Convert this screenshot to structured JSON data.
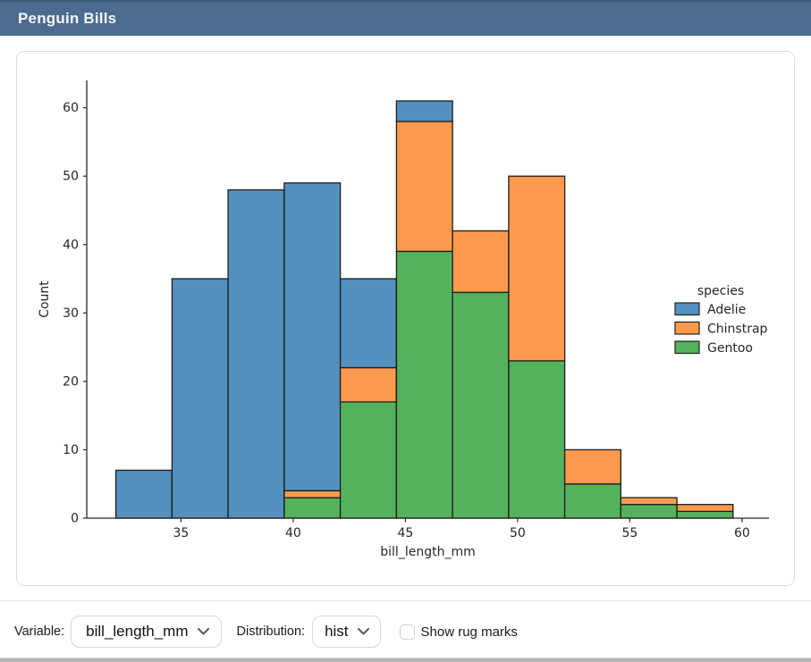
{
  "title_bar": {
    "title": "Penguin Bills"
  },
  "theme": {
    "titlebar_bg": "#4B6C8F",
    "titlebar_top_edge": "#3A5873",
    "titlebar_text": "#F5F7FA",
    "card_border": "#DCDCDC",
    "divider": "#E4E4E4",
    "window_edge": "#B5B5B5",
    "axis_color": "#262626",
    "bar_edge_color": "#1C1C1C"
  },
  "chart_data": {
    "type": "bar",
    "subtype": "stacked_histogram",
    "title": "",
    "xlabel": "bill_length_mm",
    "ylabel": "Count",
    "xlim": [
      30.8,
      61.2
    ],
    "ylim": [
      0,
      64
    ],
    "x_ticks": [
      35,
      40,
      45,
      50,
      55,
      60
    ],
    "y_ticks": [
      0,
      10,
      20,
      30,
      40,
      50,
      60
    ],
    "grid": false,
    "stacking": "bottom-to-top",
    "bin_edges": [
      32.1,
      34.6,
      37.1,
      39.6,
      42.1,
      44.6,
      47.1,
      49.6,
      52.1,
      54.6,
      57.1,
      59.6
    ],
    "series": [
      {
        "name": "Gentoo",
        "color": "#54B25C",
        "values": [
          0,
          0,
          0,
          3,
          17,
          39,
          33,
          23,
          5,
          2,
          1
        ]
      },
      {
        "name": "Chinstrap",
        "color": "#FD9A4D",
        "values": [
          0,
          0,
          0,
          1,
          5,
          19,
          9,
          27,
          5,
          1,
          1
        ]
      },
      {
        "name": "Adelie",
        "color": "#5390BE",
        "values": [
          7,
          35,
          48,
          45,
          13,
          3,
          0,
          0,
          0,
          0,
          0
        ]
      }
    ],
    "totals": [
      7,
      35,
      48,
      49,
      35,
      61,
      42,
      50,
      10,
      3,
      2
    ],
    "legend": {
      "title": "species",
      "position": "right",
      "entries": [
        {
          "label": "Adelie",
          "color": "#5390BE"
        },
        {
          "label": "Chinstrap",
          "color": "#FD9A4D"
        },
        {
          "label": "Gentoo",
          "color": "#54B25C"
        }
      ]
    }
  },
  "controls": {
    "variable_label": "Variable:",
    "variable_value": "bill_length_mm",
    "distribution_label": "Distribution:",
    "distribution_value": "hist",
    "rug_checkbox_checked": false,
    "rug_label": "Show rug marks"
  }
}
